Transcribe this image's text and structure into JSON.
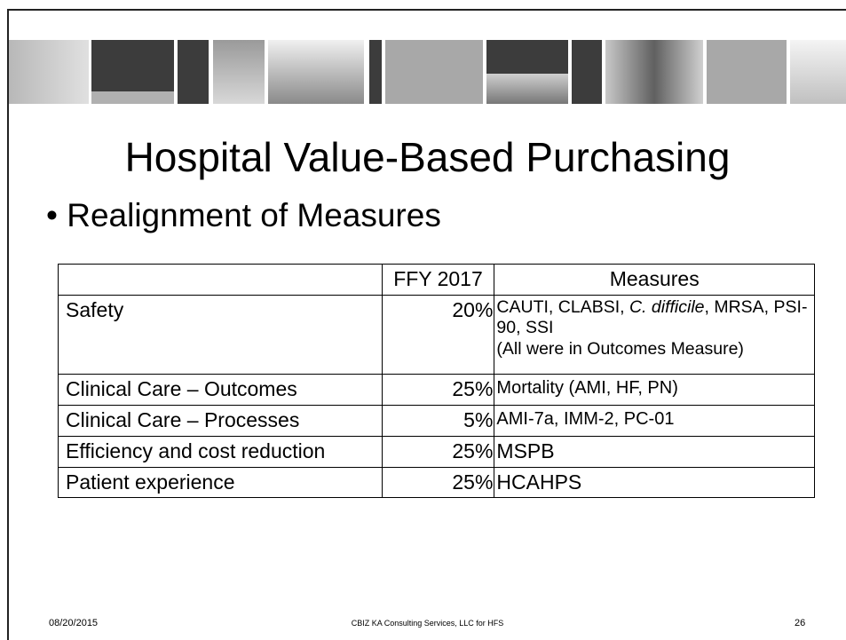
{
  "title": "Hospital Value-Based Purchasing",
  "bullet": "Realignment of Measures",
  "table": {
    "columns": [
      "FFY 2017",
      "Measures"
    ],
    "rows": [
      {
        "domain": "Safety",
        "weight": "20%",
        "measures": [
          "CAUTI, CLABSI, ",
          "C. difficile",
          ", MRSA, PSI-90, SSI"
        ],
        "note": "(All were in Outcomes Measure)"
      },
      {
        "domain": "Clinical Care – Outcomes",
        "weight": "25%",
        "measures": [
          "Mortality (AMI, HF, PN)"
        ]
      },
      {
        "domain": "Clinical Care – Processes",
        "weight": "5%",
        "measures": [
          "AMI-7a, IMM-2, PC-01"
        ]
      },
      {
        "domain": "Efficiency and cost reduction",
        "weight": "25%",
        "measures": [
          "MSPB"
        ]
      },
      {
        "domain": "Patient experience",
        "weight": "25%",
        "measures": [
          "HCAHPS"
        ]
      }
    ]
  },
  "footer": {
    "date": "08/20/2015",
    "center": "CBIZ KA Consulting Services, LLC for HFS",
    "page": "26"
  }
}
